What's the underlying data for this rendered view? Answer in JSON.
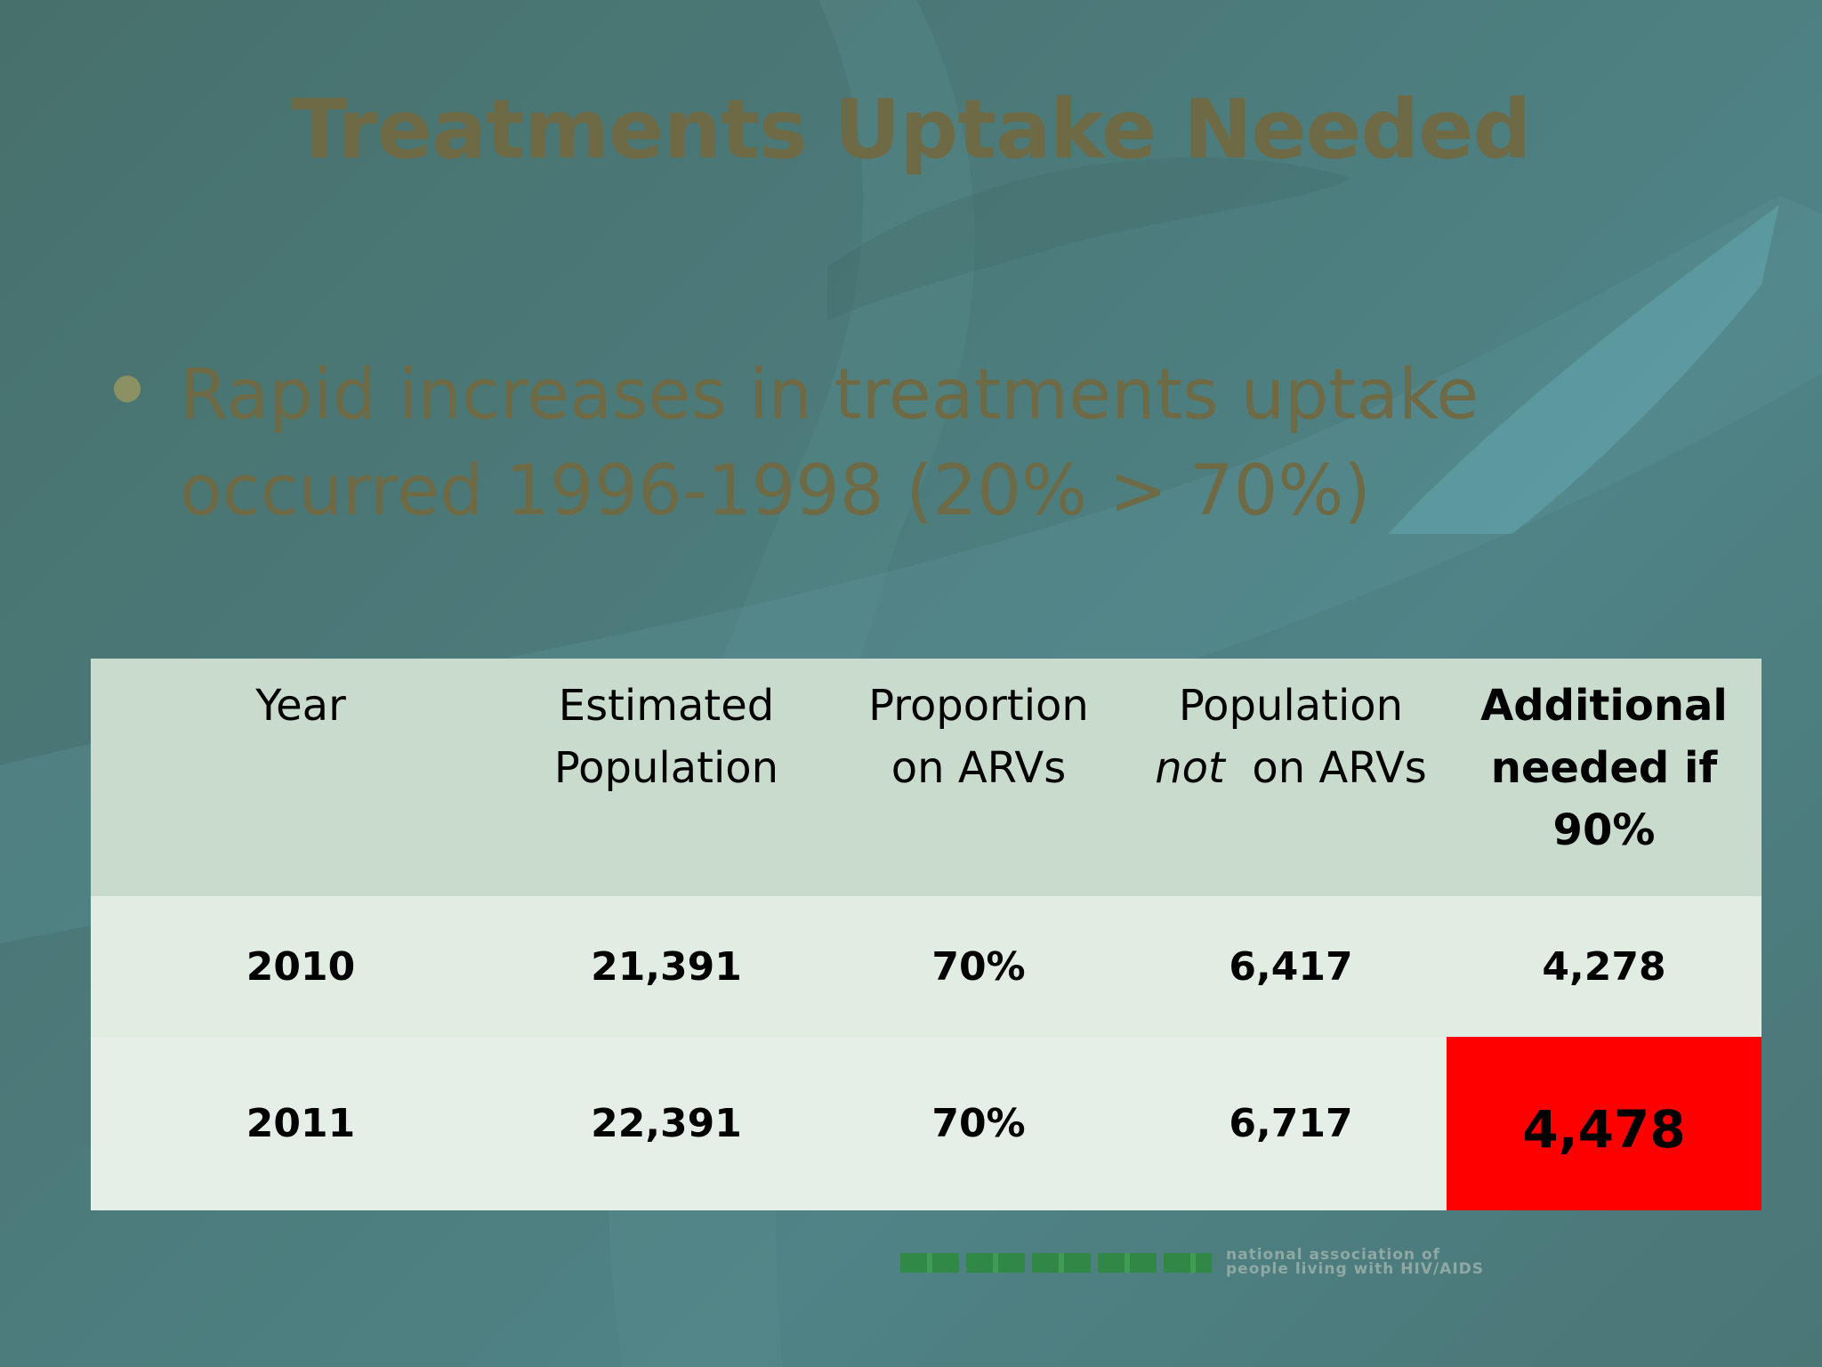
{
  "slide": {
    "title": "Treatments Uptake Needed",
    "bullet": "Rapid increases in treatments uptake occurred 1996-1998 (20% > 70%)"
  },
  "table": {
    "headers": [
      {
        "line1": "Year",
        "line2": ""
      },
      {
        "line1": "Estimated",
        "line2": "Population"
      },
      {
        "line1": "Proportion",
        "line2": "on ARVs"
      },
      {
        "line1": "Population",
        "line2_em": "not",
        "line2": "on ARVs"
      },
      {
        "line1": "Additional",
        "line2": "needed if",
        "line3": "90%"
      }
    ],
    "rows": [
      {
        "year": "2010",
        "estimated": "21,391",
        "proportion": "70%",
        "not_on": "6,417",
        "additional": "4,278"
      },
      {
        "year": "2011",
        "estimated": "22,391",
        "proportion": "70%",
        "not_on": "6,717",
        "additional": "4,478"
      }
    ],
    "highlight_color": "#ff0000"
  },
  "logo": {
    "line1": "national association of",
    "line2": "people living with HIV/AIDS"
  }
}
